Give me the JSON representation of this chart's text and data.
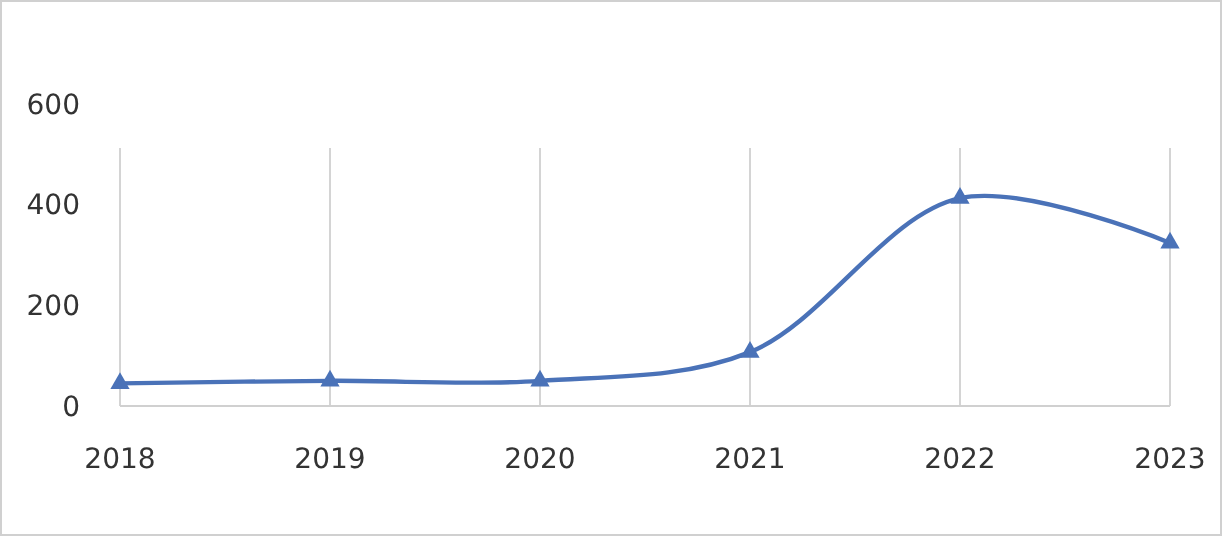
{
  "chart_data": {
    "type": "line",
    "categories": [
      "2018",
      "2019",
      "2020",
      "2021",
      "2022",
      "2023"
    ],
    "series": [
      {
        "color": "#4a72b8",
        "values": [
          45,
          50,
          50,
          107,
          413,
          324
        ]
      }
    ],
    "ylim": [
      0,
      600
    ],
    "yticks": [
      0,
      200,
      400,
      600
    ],
    "grid": "x",
    "marker": "triangle",
    "line_style": "solid"
  }
}
